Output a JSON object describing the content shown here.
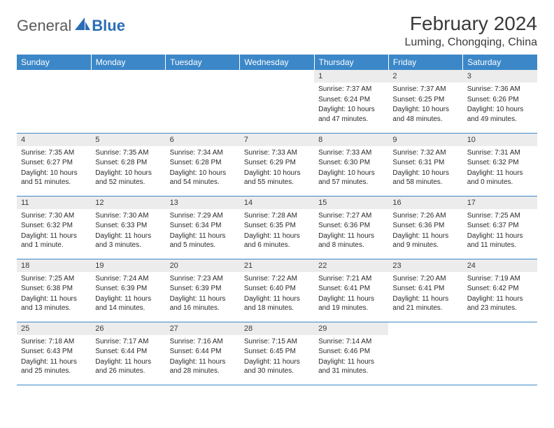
{
  "brand": {
    "part1": "General",
    "part2": "Blue"
  },
  "title": "February 2024",
  "location": "Luming, Chongqing, China",
  "colors": {
    "header_bg": "#3b87c8",
    "header_text": "#ffffff",
    "daynum_bg": "#ececec",
    "border": "#3b87c8",
    "brand_gray": "#5a5a5a",
    "brand_blue": "#2a6db5"
  },
  "days_of_week": [
    "Sunday",
    "Monday",
    "Tuesday",
    "Wednesday",
    "Thursday",
    "Friday",
    "Saturday"
  ],
  "weeks": [
    [
      {
        "n": "",
        "sr": "",
        "ss": "",
        "dl": ""
      },
      {
        "n": "",
        "sr": "",
        "ss": "",
        "dl": ""
      },
      {
        "n": "",
        "sr": "",
        "ss": "",
        "dl": ""
      },
      {
        "n": "",
        "sr": "",
        "ss": "",
        "dl": ""
      },
      {
        "n": "1",
        "sr": "Sunrise: 7:37 AM",
        "ss": "Sunset: 6:24 PM",
        "dl": "Daylight: 10 hours and 47 minutes."
      },
      {
        "n": "2",
        "sr": "Sunrise: 7:37 AM",
        "ss": "Sunset: 6:25 PM",
        "dl": "Daylight: 10 hours and 48 minutes."
      },
      {
        "n": "3",
        "sr": "Sunrise: 7:36 AM",
        "ss": "Sunset: 6:26 PM",
        "dl": "Daylight: 10 hours and 49 minutes."
      }
    ],
    [
      {
        "n": "4",
        "sr": "Sunrise: 7:35 AM",
        "ss": "Sunset: 6:27 PM",
        "dl": "Daylight: 10 hours and 51 minutes."
      },
      {
        "n": "5",
        "sr": "Sunrise: 7:35 AM",
        "ss": "Sunset: 6:28 PM",
        "dl": "Daylight: 10 hours and 52 minutes."
      },
      {
        "n": "6",
        "sr": "Sunrise: 7:34 AM",
        "ss": "Sunset: 6:28 PM",
        "dl": "Daylight: 10 hours and 54 minutes."
      },
      {
        "n": "7",
        "sr": "Sunrise: 7:33 AM",
        "ss": "Sunset: 6:29 PM",
        "dl": "Daylight: 10 hours and 55 minutes."
      },
      {
        "n": "8",
        "sr": "Sunrise: 7:33 AM",
        "ss": "Sunset: 6:30 PM",
        "dl": "Daylight: 10 hours and 57 minutes."
      },
      {
        "n": "9",
        "sr": "Sunrise: 7:32 AM",
        "ss": "Sunset: 6:31 PM",
        "dl": "Daylight: 10 hours and 58 minutes."
      },
      {
        "n": "10",
        "sr": "Sunrise: 7:31 AM",
        "ss": "Sunset: 6:32 PM",
        "dl": "Daylight: 11 hours and 0 minutes."
      }
    ],
    [
      {
        "n": "11",
        "sr": "Sunrise: 7:30 AM",
        "ss": "Sunset: 6:32 PM",
        "dl": "Daylight: 11 hours and 1 minute."
      },
      {
        "n": "12",
        "sr": "Sunrise: 7:30 AM",
        "ss": "Sunset: 6:33 PM",
        "dl": "Daylight: 11 hours and 3 minutes."
      },
      {
        "n": "13",
        "sr": "Sunrise: 7:29 AM",
        "ss": "Sunset: 6:34 PM",
        "dl": "Daylight: 11 hours and 5 minutes."
      },
      {
        "n": "14",
        "sr": "Sunrise: 7:28 AM",
        "ss": "Sunset: 6:35 PM",
        "dl": "Daylight: 11 hours and 6 minutes."
      },
      {
        "n": "15",
        "sr": "Sunrise: 7:27 AM",
        "ss": "Sunset: 6:36 PM",
        "dl": "Daylight: 11 hours and 8 minutes."
      },
      {
        "n": "16",
        "sr": "Sunrise: 7:26 AM",
        "ss": "Sunset: 6:36 PM",
        "dl": "Daylight: 11 hours and 9 minutes."
      },
      {
        "n": "17",
        "sr": "Sunrise: 7:25 AM",
        "ss": "Sunset: 6:37 PM",
        "dl": "Daylight: 11 hours and 11 minutes."
      }
    ],
    [
      {
        "n": "18",
        "sr": "Sunrise: 7:25 AM",
        "ss": "Sunset: 6:38 PM",
        "dl": "Daylight: 11 hours and 13 minutes."
      },
      {
        "n": "19",
        "sr": "Sunrise: 7:24 AM",
        "ss": "Sunset: 6:39 PM",
        "dl": "Daylight: 11 hours and 14 minutes."
      },
      {
        "n": "20",
        "sr": "Sunrise: 7:23 AM",
        "ss": "Sunset: 6:39 PM",
        "dl": "Daylight: 11 hours and 16 minutes."
      },
      {
        "n": "21",
        "sr": "Sunrise: 7:22 AM",
        "ss": "Sunset: 6:40 PM",
        "dl": "Daylight: 11 hours and 18 minutes."
      },
      {
        "n": "22",
        "sr": "Sunrise: 7:21 AM",
        "ss": "Sunset: 6:41 PM",
        "dl": "Daylight: 11 hours and 19 minutes."
      },
      {
        "n": "23",
        "sr": "Sunrise: 7:20 AM",
        "ss": "Sunset: 6:41 PM",
        "dl": "Daylight: 11 hours and 21 minutes."
      },
      {
        "n": "24",
        "sr": "Sunrise: 7:19 AM",
        "ss": "Sunset: 6:42 PM",
        "dl": "Daylight: 11 hours and 23 minutes."
      }
    ],
    [
      {
        "n": "25",
        "sr": "Sunrise: 7:18 AM",
        "ss": "Sunset: 6:43 PM",
        "dl": "Daylight: 11 hours and 25 minutes."
      },
      {
        "n": "26",
        "sr": "Sunrise: 7:17 AM",
        "ss": "Sunset: 6:44 PM",
        "dl": "Daylight: 11 hours and 26 minutes."
      },
      {
        "n": "27",
        "sr": "Sunrise: 7:16 AM",
        "ss": "Sunset: 6:44 PM",
        "dl": "Daylight: 11 hours and 28 minutes."
      },
      {
        "n": "28",
        "sr": "Sunrise: 7:15 AM",
        "ss": "Sunset: 6:45 PM",
        "dl": "Daylight: 11 hours and 30 minutes."
      },
      {
        "n": "29",
        "sr": "Sunrise: 7:14 AM",
        "ss": "Sunset: 6:46 PM",
        "dl": "Daylight: 11 hours and 31 minutes."
      },
      {
        "n": "",
        "sr": "",
        "ss": "",
        "dl": ""
      },
      {
        "n": "",
        "sr": "",
        "ss": "",
        "dl": ""
      }
    ]
  ]
}
